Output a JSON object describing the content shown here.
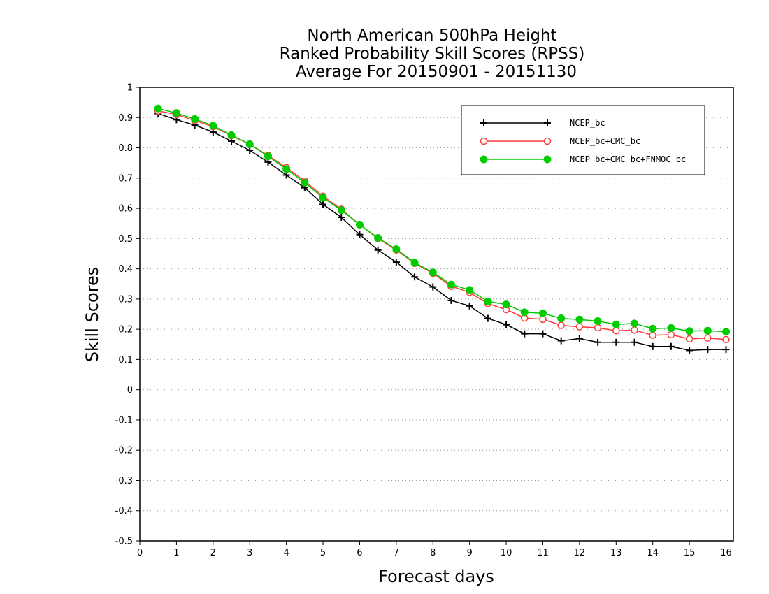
{
  "chart_data": {
    "type": "line",
    "title_lines": [
      "North American 500hPa Height",
      "Ranked Probability Skill Scores (RPSS)",
      "Average For 20150901 - 20151130"
    ],
    "xlabel": "Forecast days",
    "ylabel": "Skill Scores",
    "xlim": [
      0,
      16.2
    ],
    "ylim": [
      -0.5,
      1
    ],
    "x_ticks": [
      0,
      1,
      2,
      3,
      4,
      5,
      6,
      7,
      8,
      9,
      10,
      11,
      12,
      13,
      14,
      15,
      16
    ],
    "y_ticks": [
      -0.5,
      -0.4,
      -0.3,
      -0.2,
      -0.1,
      0,
      0.1,
      0.2,
      0.3,
      0.4,
      0.5,
      0.6,
      0.7,
      0.8,
      0.9,
      1
    ],
    "y_tick_labels": [
      "-0.5",
      "-0.4",
      "-0.3",
      "-0.2",
      "-0.1",
      "0",
      "0.1",
      "0.2",
      "0.3",
      "0.4",
      "0.5",
      "0.6",
      "0.7",
      "0.8",
      "0.9",
      "1"
    ],
    "grid": "horizontal dotted",
    "legend_position": "top-right",
    "x": [
      0.5,
      1,
      1.5,
      2,
      2.5,
      3,
      3.5,
      4,
      4.5,
      5,
      5.5,
      6,
      6.5,
      7,
      7.5,
      8,
      8.5,
      9,
      9.5,
      10,
      10.5,
      11,
      11.5,
      12,
      12.5,
      13,
      13.5,
      14,
      14.5,
      15,
      15.5,
      16
    ],
    "series": [
      {
        "name": "NCEP_bc",
        "color": "#000000",
        "marker": "plus",
        "values": [
          0.913,
          0.893,
          0.875,
          0.852,
          0.822,
          0.792,
          0.753,
          0.71,
          0.668,
          0.613,
          0.57,
          0.513,
          0.462,
          0.422,
          0.373,
          0.34,
          0.295,
          0.277,
          0.236,
          0.215,
          0.185,
          0.185,
          0.162,
          0.169,
          0.157,
          0.157,
          0.157,
          0.143,
          0.143,
          0.13,
          0.133,
          0.133
        ]
      },
      {
        "name": "NCEP_bc+CMC_bc",
        "color": "#ff3b3b",
        "marker": "open-circle",
        "values": [
          0.922,
          0.91,
          0.89,
          0.87,
          0.84,
          0.812,
          0.775,
          0.735,
          0.69,
          0.64,
          0.597,
          0.546,
          0.5,
          0.462,
          0.418,
          0.385,
          0.342,
          0.322,
          0.285,
          0.265,
          0.237,
          0.233,
          0.213,
          0.208,
          0.205,
          0.195,
          0.197,
          0.18,
          0.182,
          0.168,
          0.171,
          0.166
        ]
      },
      {
        "name": "NCEP_bc+CMC_bc+FNMOC_bc",
        "color": "#00cc00",
        "marker": "filled-circle",
        "values": [
          0.93,
          0.915,
          0.895,
          0.873,
          0.842,
          0.812,
          0.772,
          0.73,
          0.685,
          0.635,
          0.594,
          0.546,
          0.502,
          0.465,
          0.42,
          0.388,
          0.348,
          0.33,
          0.292,
          0.282,
          0.256,
          0.253,
          0.236,
          0.232,
          0.227,
          0.216,
          0.219,
          0.202,
          0.204,
          0.194,
          0.195,
          0.192
        ]
      }
    ]
  }
}
